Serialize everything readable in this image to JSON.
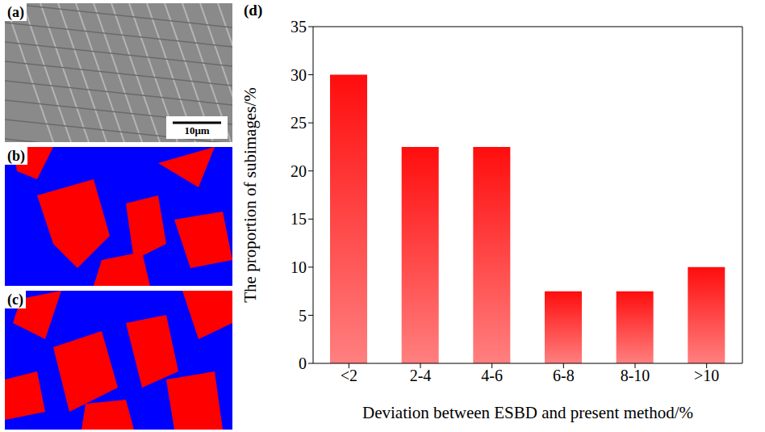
{
  "chart_data": {
    "type": "bar",
    "panel": "(d)",
    "x_label": "Deviation between ESBD and present method/%",
    "y_label": "The proportion of subimages/%",
    "categories": [
      "<2",
      "2-4",
      "4-6",
      "6-8",
      "8-10",
      ">10"
    ],
    "values": [
      30,
      22.5,
      22.5,
      7.5,
      7.5,
      10
    ],
    "color": "#ff0000",
    "ylim": [
      0,
      35
    ],
    "yticks": [
      0,
      5,
      10,
      15,
      20,
      25,
      30,
      35
    ],
    "grid": false
  },
  "images": [
    {
      "label": "(a)",
      "scale_bar": "10μm"
    },
    {
      "label": "(b)"
    },
    {
      "label": "(c)"
    }
  ]
}
